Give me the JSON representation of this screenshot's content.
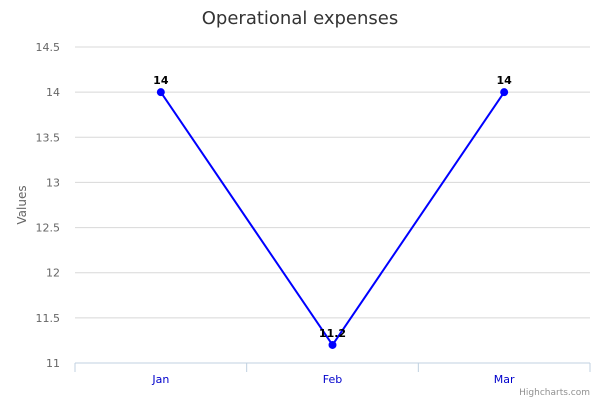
{
  "chart_data": {
    "type": "line",
    "title": "Operational expenses",
    "ylabel": "Values",
    "xlabel": "",
    "categories": [
      "Jan",
      "Feb",
      "Mar"
    ],
    "series": [
      {
        "values": [
          14,
          11.2,
          14
        ]
      }
    ],
    "data_labels": [
      "14",
      "11.2",
      "14"
    ],
    "y_ticks": [
      "11",
      "11.5",
      "12",
      "12.5",
      "13",
      "13.5",
      "14",
      "14.5"
    ],
    "ylim": [
      11,
      14.5
    ],
    "grid": true,
    "legend": "none",
    "colors": {
      "series": "#0000ff",
      "grid": "#d8d8d8",
      "axis": "#c0d0e0",
      "category_label": "#0000cc"
    }
  },
  "credits": "Highcharts.com"
}
